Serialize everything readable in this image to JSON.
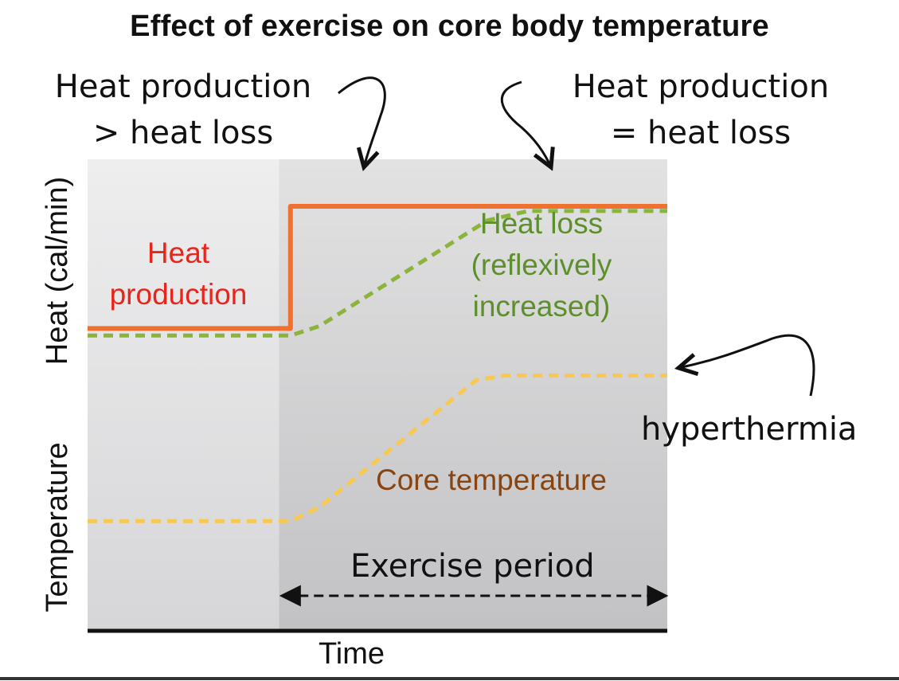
{
  "title": "Effect of exercise on core body temperature",
  "annotations": {
    "left_line1": "Heat production",
    "left_line2": "> heat loss",
    "right_line1": "Heat production",
    "right_line2": "= heat loss",
    "hyperthermia": "hyperthermia",
    "exercise_period": "Exercise period"
  },
  "series_labels": {
    "heat_production": [
      "Heat",
      "production"
    ],
    "heat_loss": [
      "Heat loss",
      "(reflexively",
      "increased)"
    ],
    "core_temperature": "Core temperature"
  },
  "axes": {
    "xlabel": "Time",
    "ylabel_upper": "Heat (cal/min)",
    "ylabel_lower": "Temperature"
  },
  "chart_data": {
    "type": "line",
    "title": "Effect of exercise on core body temperature",
    "xlabel": "Time",
    "ylabel": "Heat (cal/min) / Temperature",
    "xlim": [
      0,
      10
    ],
    "ylim": [
      0,
      10
    ],
    "grid": false,
    "exercise_period": {
      "start": 3.3,
      "end": 10
    },
    "series": [
      {
        "name": "Heat production",
        "color": "#f07030",
        "style": "solid",
        "x": [
          0,
          3.5,
          3.5,
          10
        ],
        "y": [
          6.4,
          6.4,
          9.0,
          9.0
        ]
      },
      {
        "name": "Heat loss (reflexively increased)",
        "color": "#8ab43a",
        "style": "dashed",
        "x": [
          0,
          3.5,
          4.0,
          6.9,
          7.6,
          10
        ],
        "y": [
          6.25,
          6.25,
          6.45,
          8.7,
          8.9,
          8.9
        ]
      },
      {
        "name": "Core temperature",
        "color": "#f8c850",
        "style": "dashed",
        "x": [
          0,
          3.5,
          4.0,
          6.7,
          7.2,
          10
        ],
        "y": [
          2.3,
          2.3,
          2.6,
          5.3,
          5.4,
          5.4
        ]
      }
    ]
  }
}
